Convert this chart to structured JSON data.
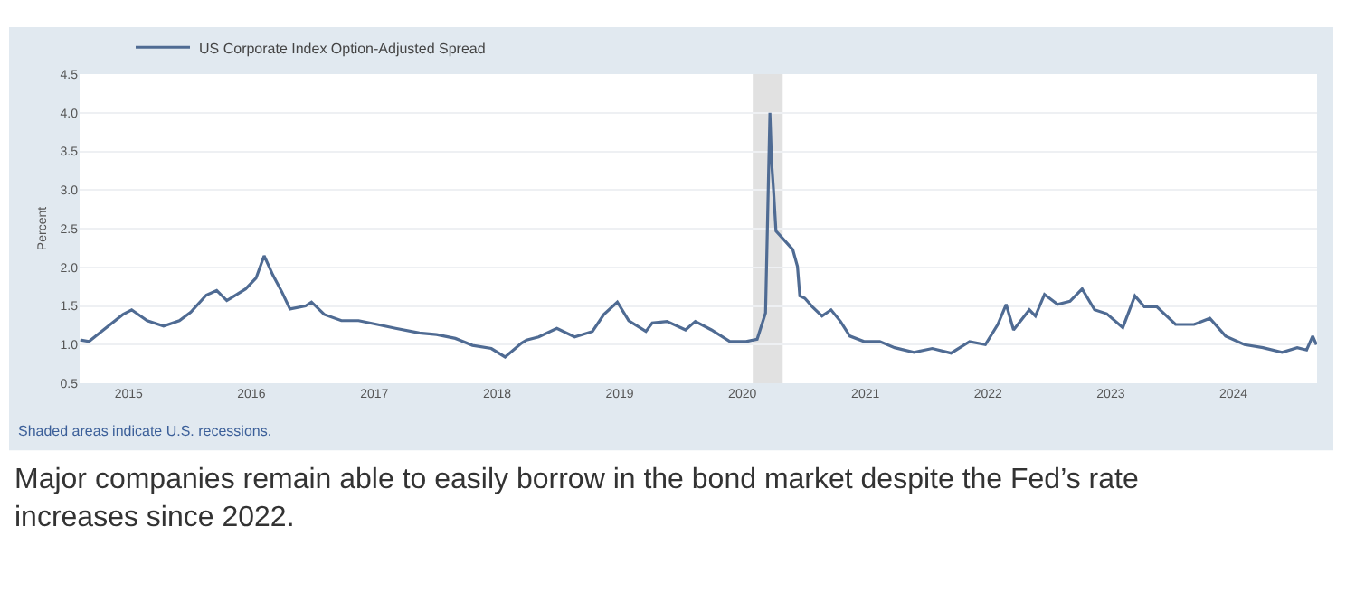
{
  "chart_data": {
    "type": "line",
    "ylabel": "Percent",
    "annotations": [
      "Shaded areas indicate U.S. recessions.",
      "Major companies remain able to easily borrow in the bond market despite the Fed’s rate increases since 2022."
    ],
    "x": [
      "2014-08-10",
      "2014-09-05",
      "2014-10-12",
      "2014-12-15",
      "2015-01-10",
      "2015-02-25",
      "2015-04-15",
      "2015-06-01",
      "2015-07-05",
      "2015-08-20",
      "2015-09-20",
      "2015-10-20",
      "2015-11-15",
      "2015-12-15",
      "2016-01-15",
      "2016-02-08",
      "2016-03-05",
      "2016-04-01",
      "2016-04-25",
      "2016-06-10",
      "2016-06-28",
      "2016-08-05",
      "2016-09-25",
      "2016-11-15",
      "2017-01-10",
      "2017-03-05",
      "2017-05-15",
      "2017-07-05",
      "2017-08-30",
      "2017-10-20",
      "2017-12-15",
      "2018-01-25",
      "2018-03-15",
      "2018-03-30",
      "2018-05-05",
      "2018-06-28",
      "2018-08-20",
      "2018-10-12",
      "2018-11-15",
      "2018-12-25",
      "2019-01-28",
      "2019-03-20",
      "2019-04-08",
      "2019-05-22",
      "2019-07-16",
      "2019-08-14",
      "2019-10-01",
      "2019-11-25",
      "2020-01-12",
      "2020-02-14",
      "2020-03-10",
      "2020-03-23",
      "2020-03-28",
      "2020-04-03",
      "2020-04-10",
      "2020-05-30",
      "2020-06-13",
      "2020-06-20",
      "2020-07-05",
      "2020-07-27",
      "2020-08-25",
      "2020-09-21",
      "2020-10-19",
      "2020-11-16",
      "2020-12-28",
      "2021-02-13",
      "2021-03-29",
      "2021-05-26",
      "2021-07-19",
      "2021-09-13",
      "2021-11-07",
      "2021-12-24",
      "2022-01-30",
      "2022-02-24",
      "2022-03-18",
      "2022-05-04",
      "2022-05-22",
      "2022-06-18",
      "2022-07-27",
      "2022-09-02",
      "2022-10-08",
      "2022-11-14",
      "2022-12-20",
      "2023-02-06",
      "2023-03-14",
      "2023-04-11",
      "2023-05-18",
      "2023-07-13",
      "2023-09-06",
      "2023-10-23",
      "2023-12-09",
      "2024-02-03",
      "2024-03-29",
      "2024-05-25",
      "2024-07-09",
      "2024-08-06",
      "2024-08-24",
      "2024-09-04"
    ],
    "series": [
      {
        "name": "US Corporate Index Option-Adjusted Spread",
        "color": "#4f6b93",
        "values": [
          1.06,
          1.04,
          1.17,
          1.39,
          1.45,
          1.31,
          1.24,
          1.31,
          1.42,
          1.64,
          1.7,
          1.57,
          1.64,
          1.72,
          1.86,
          2.15,
          1.9,
          1.68,
          1.46,
          1.5,
          1.55,
          1.39,
          1.31,
          1.31,
          1.26,
          1.21,
          1.15,
          1.13,
          1.08,
          0.99,
          0.95,
          0.84,
          1.02,
          1.06,
          1.1,
          1.21,
          1.1,
          1.17,
          1.39,
          1.55,
          1.31,
          1.17,
          1.28,
          1.3,
          1.19,
          1.3,
          1.19,
          1.04,
          1.04,
          1.07,
          1.41,
          4.0,
          3.36,
          2.98,
          2.47,
          2.23,
          2.01,
          1.63,
          1.6,
          1.49,
          1.37,
          1.45,
          1.3,
          1.11,
          1.04,
          1.04,
          0.96,
          0.9,
          0.95,
          0.89,
          1.04,
          1.0,
          1.26,
          1.52,
          1.19,
          1.45,
          1.37,
          1.65,
          1.52,
          1.56,
          1.72,
          1.45,
          1.4,
          1.22,
          1.63,
          1.49,
          1.49,
          1.26,
          1.26,
          1.34,
          1.11,
          1.0,
          0.96,
          0.9,
          0.96,
          0.93,
          1.11,
          1.0
        ]
      }
    ],
    "bands": [
      {
        "axis": "x",
        "from": "2020-02-01",
        "to": "2020-04-30",
        "color": "#e1e1e1"
      }
    ],
    "xlim": [
      "2014-08-08",
      "2024-09-06"
    ],
    "xticks": [
      {
        "value": "2015-01-01",
        "label": "2015"
      },
      {
        "value": "2016-01-01",
        "label": "2016"
      },
      {
        "value": "2017-01-01",
        "label": "2017"
      },
      {
        "value": "2018-01-01",
        "label": "2018"
      },
      {
        "value": "2019-01-01",
        "label": "2019"
      },
      {
        "value": "2020-01-01",
        "label": "2020"
      },
      {
        "value": "2021-01-01",
        "label": "2021"
      },
      {
        "value": "2022-01-01",
        "label": "2022"
      },
      {
        "value": "2023-01-01",
        "label": "2023"
      },
      {
        "value": "2024-01-01",
        "label": "2024"
      }
    ],
    "ylim": [
      0.5,
      4.5
    ],
    "yticks": [
      0.5,
      {
        "value": 1,
        "label": "1.0"
      },
      1.5,
      {
        "value": 2,
        "label": "2.0"
      },
      2.5,
      {
        "value": 3,
        "label": "3.0"
      },
      3.5,
      {
        "value": 4,
        "label": "4.0"
      },
      4.5
    ],
    "grid": "y",
    "legend": "top left",
    "marker": "none",
    "line_style": "solid"
  }
}
